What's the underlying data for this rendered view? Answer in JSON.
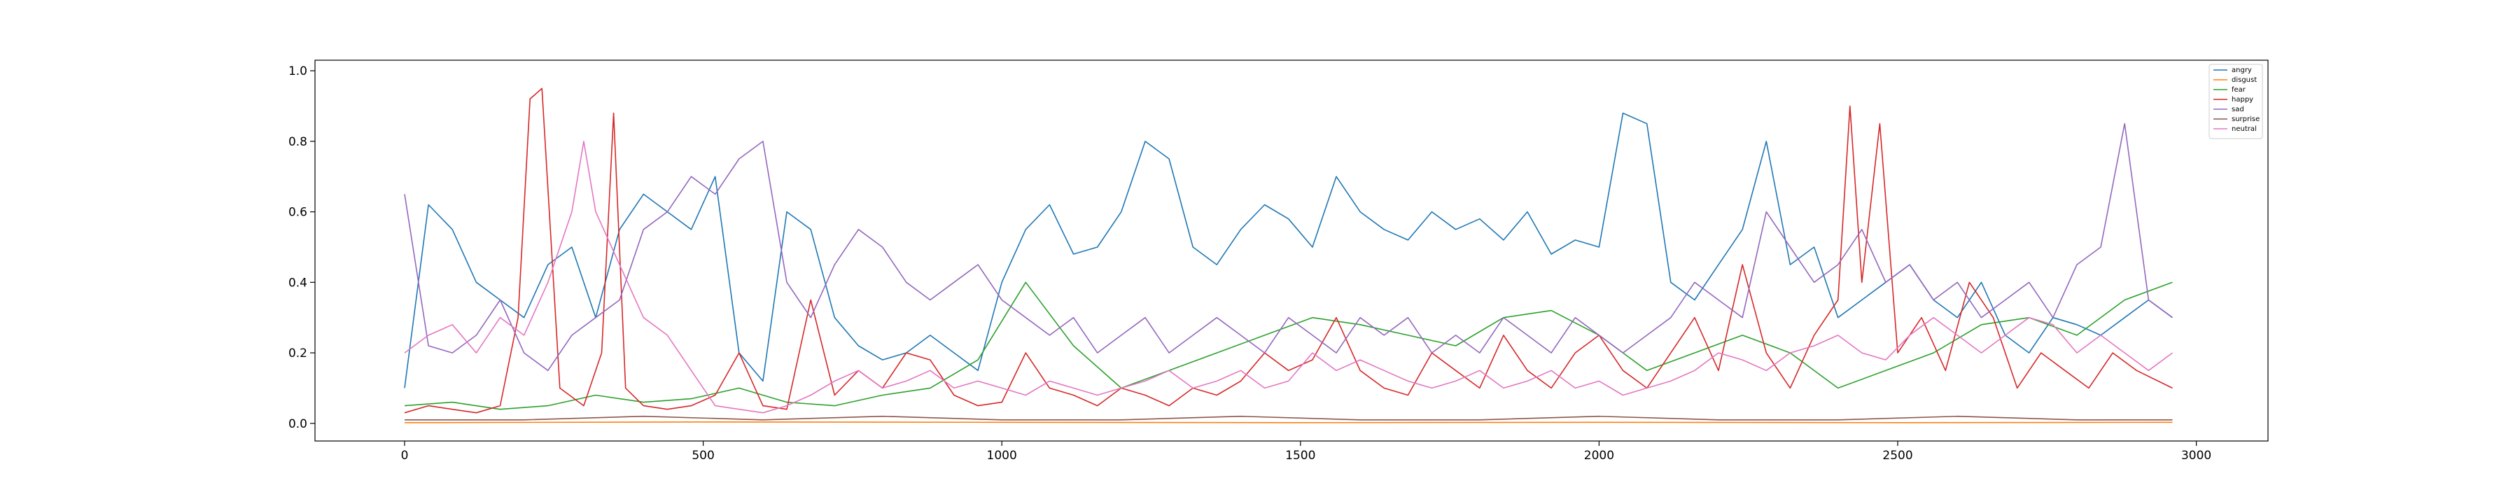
{
  "chart_data": {
    "type": "line",
    "title": "",
    "xlabel": "",
    "ylabel": "",
    "xlim": [
      -150,
      3120
    ],
    "ylim": [
      -0.05,
      1.03
    ],
    "x_ticks": [
      0,
      500,
      1000,
      1500,
      2000,
      2500,
      3000
    ],
    "x_tick_labels": [
      "0",
      "500",
      "1000",
      "1500",
      "2000",
      "2500",
      "3000"
    ],
    "y_ticks": [
      0.0,
      0.2,
      0.4,
      0.6,
      0.8,
      1.0
    ],
    "y_tick_labels": [
      "0.0",
      "0.2",
      "0.4",
      "0.6",
      "0.8",
      "1.0"
    ],
    "grid": false,
    "legend_position": "top-right",
    "series": [
      {
        "name": "angry",
        "color": "#1f77b4",
        "x": [
          0,
          40,
          80,
          120,
          160,
          200,
          240,
          280,
          320,
          360,
          400,
          440,
          480,
          520,
          560,
          600,
          640,
          680,
          720,
          760,
          800,
          840,
          880,
          920,
          960,
          1000,
          1040,
          1080,
          1120,
          1160,
          1200,
          1240,
          1280,
          1320,
          1360,
          1400,
          1440,
          1480,
          1520,
          1560,
          1600,
          1640,
          1680,
          1720,
          1760,
          1800,
          1840,
          1880,
          1920,
          1960,
          2000,
          2040,
          2080,
          2120,
          2160,
          2200,
          2240,
          2280,
          2320,
          2360,
          2400,
          2440,
          2480,
          2520,
          2560,
          2600,
          2640,
          2680,
          2720,
          2760,
          2800,
          2840,
          2880,
          2920,
          2960
        ],
        "y": [
          0.1,
          0.62,
          0.55,
          0.4,
          0.35,
          0.3,
          0.45,
          0.5,
          0.3,
          0.55,
          0.65,
          0.6,
          0.55,
          0.7,
          0.2,
          0.12,
          0.6,
          0.55,
          0.3,
          0.22,
          0.18,
          0.2,
          0.25,
          0.2,
          0.15,
          0.4,
          0.55,
          0.62,
          0.48,
          0.5,
          0.6,
          0.8,
          0.75,
          0.5,
          0.45,
          0.55,
          0.62,
          0.58,
          0.5,
          0.7,
          0.6,
          0.55,
          0.52,
          0.6,
          0.55,
          0.58,
          0.52,
          0.6,
          0.48,
          0.52,
          0.5,
          0.88,
          0.85,
          0.4,
          0.35,
          0.45,
          0.55,
          0.8,
          0.45,
          0.5,
          0.3,
          0.35,
          0.4,
          0.45,
          0.35,
          0.3,
          0.4,
          0.25,
          0.2,
          0.3,
          0.28,
          0.25,
          0.3,
          0.35,
          0.3
        ]
      },
      {
        "name": "disgust",
        "color": "#ff7f0e",
        "x": [
          0,
          500,
          1000,
          1500,
          2000,
          2500,
          2960
        ],
        "y": [
          0.002,
          0.004,
          0.003,
          0.002,
          0.003,
          0.002,
          0.003
        ]
      },
      {
        "name": "fear",
        "color": "#2ca02c",
        "x": [
          0,
          80,
          160,
          240,
          320,
          400,
          480,
          560,
          640,
          720,
          800,
          880,
          960,
          1040,
          1120,
          1200,
          1280,
          1360,
          1440,
          1520,
          1600,
          1680,
          1760,
          1840,
          1920,
          2000,
          2080,
          2160,
          2240,
          2320,
          2400,
          2480,
          2560,
          2640,
          2720,
          2800,
          2880,
          2960
        ],
        "y": [
          0.05,
          0.06,
          0.04,
          0.05,
          0.08,
          0.06,
          0.07,
          0.1,
          0.06,
          0.05,
          0.08,
          0.1,
          0.18,
          0.4,
          0.22,
          0.1,
          0.15,
          0.2,
          0.25,
          0.3,
          0.28,
          0.25,
          0.22,
          0.3,
          0.32,
          0.25,
          0.15,
          0.2,
          0.25,
          0.2,
          0.1,
          0.15,
          0.2,
          0.28,
          0.3,
          0.25,
          0.35,
          0.4
        ]
      },
      {
        "name": "happy",
        "color": "#d62728",
        "x": [
          0,
          40,
          80,
          120,
          160,
          190,
          210,
          230,
          260,
          300,
          330,
          350,
          370,
          400,
          440,
          480,
          520,
          560,
          600,
          640,
          680,
          720,
          760,
          800,
          840,
          880,
          920,
          960,
          1000,
          1040,
          1080,
          1120,
          1160,
          1200,
          1240,
          1280,
          1320,
          1360,
          1400,
          1440,
          1480,
          1520,
          1560,
          1600,
          1640,
          1680,
          1720,
          1760,
          1800,
          1840,
          1880,
          1920,
          1960,
          2000,
          2040,
          2080,
          2120,
          2160,
          2200,
          2240,
          2280,
          2320,
          2360,
          2400,
          2420,
          2440,
          2470,
          2500,
          2540,
          2580,
          2620,
          2660,
          2700,
          2740,
          2780,
          2820,
          2860,
          2900,
          2960
        ],
        "y": [
          0.03,
          0.05,
          0.04,
          0.03,
          0.05,
          0.3,
          0.92,
          0.95,
          0.1,
          0.05,
          0.2,
          0.88,
          0.1,
          0.05,
          0.04,
          0.05,
          0.08,
          0.2,
          0.05,
          0.04,
          0.35,
          0.08,
          0.15,
          0.1,
          0.2,
          0.18,
          0.08,
          0.05,
          0.06,
          0.2,
          0.1,
          0.08,
          0.05,
          0.1,
          0.08,
          0.05,
          0.1,
          0.08,
          0.12,
          0.2,
          0.15,
          0.18,
          0.3,
          0.15,
          0.1,
          0.08,
          0.2,
          0.15,
          0.1,
          0.25,
          0.15,
          0.1,
          0.2,
          0.25,
          0.15,
          0.1,
          0.2,
          0.3,
          0.15,
          0.45,
          0.2,
          0.1,
          0.25,
          0.35,
          0.9,
          0.4,
          0.85,
          0.2,
          0.3,
          0.15,
          0.4,
          0.3,
          0.1,
          0.2,
          0.15,
          0.1,
          0.2,
          0.15,
          0.1
        ]
      },
      {
        "name": "sad",
        "color": "#9467bd",
        "x": [
          0,
          40,
          80,
          120,
          160,
          200,
          240,
          280,
          320,
          360,
          400,
          440,
          480,
          520,
          560,
          600,
          640,
          680,
          720,
          760,
          800,
          840,
          880,
          920,
          960,
          1000,
          1040,
          1080,
          1120,
          1160,
          1200,
          1240,
          1280,
          1320,
          1360,
          1400,
          1440,
          1480,
          1520,
          1560,
          1600,
          1640,
          1680,
          1720,
          1760,
          1800,
          1840,
          1880,
          1920,
          1960,
          2000,
          2040,
          2080,
          2120,
          2160,
          2200,
          2240,
          2280,
          2320,
          2360,
          2400,
          2440,
          2480,
          2520,
          2560,
          2600,
          2640,
          2680,
          2720,
          2760,
          2800,
          2840,
          2880,
          2920,
          2960
        ],
        "y": [
          0.65,
          0.22,
          0.2,
          0.25,
          0.35,
          0.2,
          0.15,
          0.25,
          0.3,
          0.35,
          0.55,
          0.6,
          0.7,
          0.65,
          0.75,
          0.8,
          0.4,
          0.3,
          0.45,
          0.55,
          0.5,
          0.4,
          0.35,
          0.4,
          0.45,
          0.35,
          0.3,
          0.25,
          0.3,
          0.2,
          0.25,
          0.3,
          0.2,
          0.25,
          0.3,
          0.25,
          0.2,
          0.3,
          0.25,
          0.2,
          0.3,
          0.25,
          0.3,
          0.2,
          0.25,
          0.2,
          0.3,
          0.25,
          0.2,
          0.3,
          0.25,
          0.2,
          0.25,
          0.3,
          0.4,
          0.35,
          0.3,
          0.6,
          0.5,
          0.4,
          0.45,
          0.55,
          0.4,
          0.45,
          0.35,
          0.4,
          0.3,
          0.35,
          0.4,
          0.3,
          0.45,
          0.5,
          0.85,
          0.35,
          0.3
        ]
      },
      {
        "name": "surprise",
        "color": "#8c564b",
        "x": [
          0,
          200,
          400,
          600,
          800,
          1000,
          1200,
          1400,
          1600,
          1800,
          2000,
          2200,
          2400,
          2600,
          2800,
          2960
        ],
        "y": [
          0.01,
          0.01,
          0.02,
          0.01,
          0.02,
          0.01,
          0.01,
          0.02,
          0.01,
          0.01,
          0.02,
          0.01,
          0.01,
          0.02,
          0.01,
          0.01
        ]
      },
      {
        "name": "neutral",
        "color": "#e377c2",
        "x": [
          0,
          40,
          80,
          120,
          160,
          200,
          240,
          280,
          300,
          320,
          360,
          400,
          440,
          480,
          520,
          560,
          600,
          640,
          680,
          720,
          760,
          800,
          840,
          880,
          920,
          960,
          1000,
          1040,
          1080,
          1120,
          1160,
          1200,
          1240,
          1280,
          1320,
          1360,
          1400,
          1440,
          1480,
          1520,
          1560,
          1600,
          1640,
          1680,
          1720,
          1760,
          1800,
          1840,
          1880,
          1920,
          1960,
          2000,
          2040,
          2080,
          2120,
          2160,
          2200,
          2240,
          2280,
          2320,
          2360,
          2400,
          2440,
          2480,
          2520,
          2560,
          2600,
          2640,
          2680,
          2720,
          2760,
          2800,
          2840,
          2880,
          2920,
          2960
        ],
        "y": [
          0.2,
          0.25,
          0.28,
          0.2,
          0.3,
          0.25,
          0.4,
          0.6,
          0.8,
          0.6,
          0.45,
          0.3,
          0.25,
          0.15,
          0.05,
          0.04,
          0.03,
          0.05,
          0.08,
          0.12,
          0.15,
          0.1,
          0.12,
          0.15,
          0.1,
          0.12,
          0.1,
          0.08,
          0.12,
          0.1,
          0.08,
          0.1,
          0.12,
          0.15,
          0.1,
          0.12,
          0.15,
          0.1,
          0.12,
          0.2,
          0.15,
          0.18,
          0.15,
          0.12,
          0.1,
          0.12,
          0.15,
          0.1,
          0.12,
          0.15,
          0.1,
          0.12,
          0.08,
          0.1,
          0.12,
          0.15,
          0.2,
          0.18,
          0.15,
          0.2,
          0.22,
          0.25,
          0.2,
          0.18,
          0.25,
          0.3,
          0.25,
          0.2,
          0.25,
          0.3,
          0.28,
          0.2,
          0.25,
          0.2,
          0.15,
          0.2
        ]
      }
    ]
  }
}
